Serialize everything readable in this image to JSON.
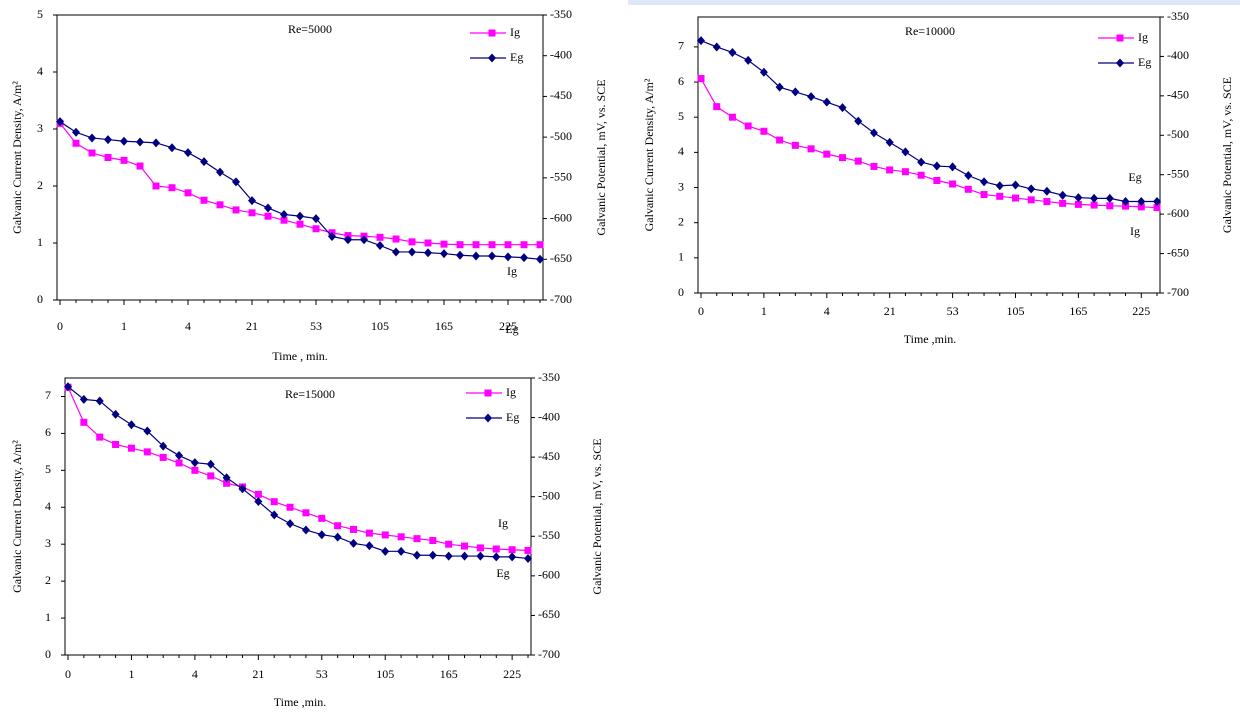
{
  "chart_data": [
    {
      "type": "line",
      "title": "Re=5000",
      "categories": [
        "0",
        null,
        null,
        null,
        "1",
        null,
        null,
        null,
        "4",
        null,
        null,
        null,
        "21",
        null,
        null,
        null,
        "53",
        null,
        null,
        null,
        "105",
        null,
        null,
        null,
        "165",
        null,
        null,
        null,
        "225",
        null,
        null
      ],
      "series": [
        {
          "name": "Ig",
          "color": "#ff00ff",
          "marker": "square",
          "values": [
            3.1,
            2.75,
            2.58,
            2.5,
            2.45,
            2.35,
            2.0,
            1.97,
            1.88,
            1.75,
            1.67,
            1.58,
            1.53,
            1.47,
            1.4,
            1.33,
            1.25,
            1.18,
            1.13,
            1.12,
            1.1,
            1.07,
            1.02,
            1.0,
            0.98,
            0.97,
            0.97,
            0.97,
            0.97,
            0.97,
            0.97
          ]
        },
        {
          "name": "Eg",
          "color": "#000080",
          "marker": "diamond",
          "axis": "y2",
          "values": [
            -481,
            -494,
            -501,
            -503,
            -505,
            -506,
            -507,
            -513,
            -519,
            -530,
            -543,
            -555,
            -578,
            -587,
            -595,
            -597,
            -600,
            -622,
            -626,
            -626,
            -633,
            -641,
            -641,
            -642,
            -643,
            -645,
            -646,
            -646,
            -647,
            -648,
            -650
          ]
        }
      ],
      "ylim": [
        0,
        5
      ],
      "yticks": [
        0,
        1,
        2,
        3,
        4,
        5
      ],
      "y2lim": [
        -700,
        -350
      ],
      "y2ticks": [
        -350,
        -400,
        -450,
        -500,
        -550,
        -600,
        -650,
        -700
      ],
      "x_label": "Time , min.",
      "y_label": "Galvanic Current Density, A/m²",
      "y2_label": "Galvanic Potential, mV, vs. SCE",
      "annotations": [
        "Ig",
        "Eg"
      ]
    },
    {
      "type": "line",
      "title": "Re=10000",
      "categories": [
        "0",
        null,
        null,
        null,
        "1",
        null,
        null,
        null,
        "4",
        null,
        null,
        null,
        "21",
        null,
        null,
        null,
        "53",
        null,
        null,
        null,
        "105",
        null,
        null,
        null,
        "165",
        null,
        null,
        null,
        "225",
        null
      ],
      "series": [
        {
          "name": "Ig",
          "color": "#ff00ff",
          "marker": "square",
          "values": [
            6.1,
            5.3,
            5.0,
            4.75,
            4.6,
            4.35,
            4.2,
            4.1,
            3.95,
            3.85,
            3.75,
            3.6,
            3.5,
            3.45,
            3.35,
            3.2,
            3.1,
            2.95,
            2.8,
            2.75,
            2.7,
            2.65,
            2.6,
            2.55,
            2.52,
            2.5,
            2.48,
            2.47,
            2.45,
            2.43
          ]
        },
        {
          "name": "Eg",
          "color": "#000080",
          "marker": "diamond",
          "axis": "y2",
          "values": [
            -380,
            -388,
            -395,
            -405,
            -420,
            -439,
            -445,
            -451,
            -458,
            -465,
            -482,
            -497,
            -509,
            -521,
            -534,
            -539,
            -540,
            -551,
            -559,
            -564,
            -563,
            -568,
            -571,
            -576,
            -579,
            -580,
            -580,
            -584,
            -584,
            -584
          ]
        }
      ],
      "ylim": [
        0,
        7.85
      ],
      "yticks": [
        0,
        1,
        2,
        3,
        4,
        5,
        6,
        7
      ],
      "y2lim": [
        -700,
        -350
      ],
      "y2ticks": [
        -350,
        -400,
        -450,
        -500,
        -550,
        -600,
        -650,
        -700
      ],
      "x_label": "Time ,min.",
      "y_label": "Galvanic Current Density, A/m²",
      "y2_label": "Galvanic Potential, mV, vs. SCE",
      "annotations": [
        "Ig",
        "Eg"
      ]
    },
    {
      "type": "line",
      "title": "Re=15000",
      "categories": [
        "0",
        null,
        null,
        null,
        "1",
        null,
        null,
        null,
        "4",
        null,
        null,
        null,
        "21",
        null,
        null,
        null,
        "53",
        null,
        null,
        null,
        "105",
        null,
        null,
        null,
        "165",
        null,
        null,
        null,
        "225",
        null
      ],
      "series": [
        {
          "name": "Ig",
          "color": "#ff00ff",
          "marker": "square",
          "values": [
            7.25,
            6.3,
            5.9,
            5.7,
            5.6,
            5.5,
            5.35,
            5.2,
            5.0,
            4.85,
            4.65,
            4.55,
            4.35,
            4.15,
            4.0,
            3.85,
            3.7,
            3.5,
            3.4,
            3.3,
            3.25,
            3.2,
            3.15,
            3.1,
            3.0,
            2.95,
            2.9,
            2.87,
            2.85,
            2.83
          ]
        },
        {
          "name": "Eg",
          "color": "#000080",
          "marker": "diamond",
          "axis": "y2",
          "values": [
            -361,
            -377,
            -379,
            -396,
            -409,
            -417,
            -436,
            -448,
            -457,
            -459,
            -476,
            -490,
            -506,
            -523,
            -534,
            -542,
            -548,
            -551,
            -559,
            -562,
            -569,
            -569,
            -574,
            -574,
            -575,
            -575,
            -575,
            -576,
            -576,
            -578
          ]
        }
      ],
      "ylim": [
        0,
        7.5
      ],
      "yticks": [
        0,
        1,
        2,
        3,
        4,
        5,
        6,
        7
      ],
      "y2lim": [
        -700,
        -350
      ],
      "y2ticks": [
        -350,
        -400,
        -450,
        -500,
        -550,
        -600,
        -650,
        -700
      ],
      "x_label": "Time ,min.",
      "y_label": "Galvanic Current Density, A/m²",
      "y2_label": "Galvanic Potential, mV, vs. SCE",
      "annotations": [
        "Ig",
        "Eg"
      ]
    }
  ]
}
